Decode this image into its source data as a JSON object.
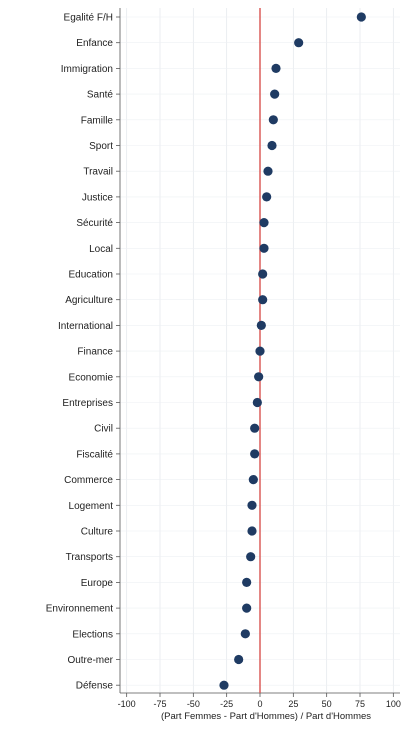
{
  "chart_data": {
    "type": "scatter",
    "title": "",
    "xlabel": "(Part Femmes - Part d'Hommes) / Part d'Hommes",
    "ylabel": "",
    "xlim": [
      -105,
      105
    ],
    "xticks": [
      -100,
      -75,
      -50,
      -25,
      0,
      25,
      50,
      75,
      100
    ],
    "xtick_labels": [
      "-100",
      "-75",
      "-50",
      "-25",
      "0",
      "25",
      "50",
      "75",
      "100"
    ],
    "reference_line": {
      "x": 0,
      "color": "#d9534f"
    },
    "grid": true,
    "marker_color": "#1f3b63",
    "categories": [
      "Egalité F/H",
      "Enfance",
      "Immigration",
      "Santé",
      "Famille",
      "Sport",
      "Travail",
      "Justice",
      "Sécurité",
      "Local",
      "Education",
      "Agriculture",
      "International",
      "Finance",
      "Economie",
      "Entreprises",
      "Civil",
      "Fiscalité",
      "Commerce",
      "Logement",
      "Culture",
      "Transports",
      "Europe",
      "Environnement",
      "Elections",
      "Outre-mer",
      "Défense"
    ],
    "values": [
      76,
      29,
      12,
      11,
      10,
      9,
      6,
      5,
      3,
      3,
      2,
      2,
      1,
      0,
      -1,
      -2,
      -4,
      -4,
      -5,
      -6,
      -6,
      -7,
      -10,
      -10,
      -11,
      -16,
      -27
    ]
  }
}
